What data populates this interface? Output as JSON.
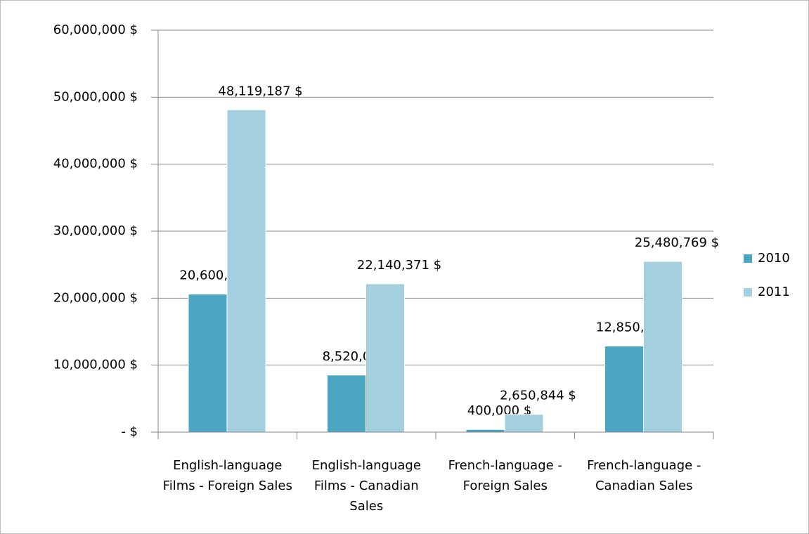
{
  "chart_data": {
    "type": "bar",
    "categories": [
      "English-language Films - Foreign Sales",
      "English-language Films - Canadian Sales",
      "French-language - Foreign Sales",
      "French-language - Canadian Sales"
    ],
    "series": [
      {
        "name": "2010",
        "color": "#4ba7c1",
        "values": [
          20600000,
          8520000,
          400000,
          12850000
        ],
        "value_labels": [
          "20,600,000 $",
          "8,520,000 $",
          "400,000 $",
          "12,850,000 $"
        ]
      },
      {
        "name": "2011",
        "color": "#a3cfde",
        "values": [
          48119187,
          22140371,
          2650844,
          25480769
        ],
        "value_labels": [
          "48,119,187 $",
          "22,140,371 $",
          "2,650,844 $",
          "25,480,769 $"
        ]
      }
    ],
    "ylim": [
      0,
      60000000
    ],
    "yticks": [
      {
        "value": 0,
        "label": "-   $"
      },
      {
        "value": 10000000,
        "label": "10,000,000 $"
      },
      {
        "value": 20000000,
        "label": "20,000,000 $"
      },
      {
        "value": 30000000,
        "label": "30,000,000 $"
      },
      {
        "value": 40000000,
        "label": "40,000,000 $"
      },
      {
        "value": 50000000,
        "label": "50,000,000 $"
      },
      {
        "value": 60000000,
        "label": "60,000,000 $"
      }
    ],
    "grid": true,
    "legend": "right"
  }
}
